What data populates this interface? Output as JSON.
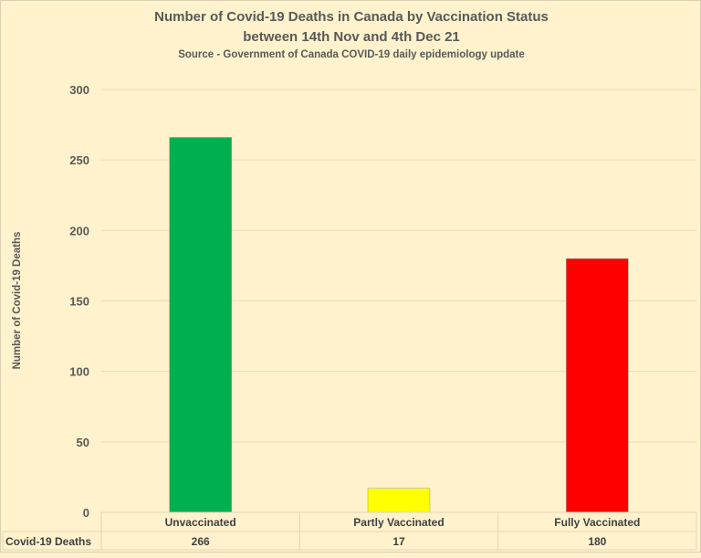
{
  "chart_data": {
    "type": "bar",
    "title": "Number of Covid-19 Deaths in Canada by Vaccination Status",
    "subtitle": "between 14th Nov and 4th Dec 21",
    "source": "Source - Government of Canada COVID-19 daily epidemiology update",
    "ylabel": "Number of Covid-19 Deaths",
    "xlabel": "",
    "ylim": [
      0,
      300
    ],
    "yticks": [
      0,
      50,
      100,
      150,
      200,
      250,
      300
    ],
    "categories": [
      "Unvaccinated",
      "Partly Vaccinated",
      "Fully Vaccinated"
    ],
    "series": [
      {
        "name": "Covid-19 Deaths",
        "values": [
          266,
          17,
          180
        ]
      }
    ],
    "colors": [
      "#00b050",
      "#ffff00",
      "#ff0000"
    ],
    "grid": true,
    "legend": "data-table"
  }
}
